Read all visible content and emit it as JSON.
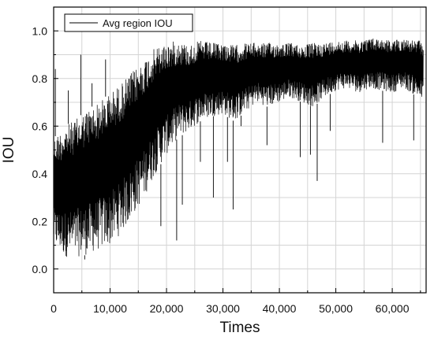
{
  "chart_data": {
    "type": "line",
    "title": "",
    "xlabel": "Times",
    "ylabel": "IOU",
    "xlim": [
      0,
      66000
    ],
    "ylim": [
      -0.1,
      1.1
    ],
    "x_ticks": [
      0,
      10000,
      20000,
      30000,
      40000,
      50000,
      60000
    ],
    "x_tick_labels": [
      "0",
      "10,000",
      "20,000",
      "30,000",
      "40,000",
      "50,000",
      "60,000"
    ],
    "y_ticks": [
      0.0,
      0.2,
      0.4,
      0.6,
      0.8,
      1.0
    ],
    "y_tick_labels": [
      "0.0",
      "0.2",
      "0.4",
      "0.6",
      "0.8",
      "1.0"
    ],
    "grid": true,
    "legend_position": "top-left",
    "series": [
      {
        "name": "Avg region IOU",
        "color": "#000000",
        "envelope": {
          "x": [
            0,
            2000,
            4000,
            6000,
            8000,
            10000,
            12000,
            14000,
            16000,
            18000,
            20000,
            22000,
            24000,
            26000,
            28000,
            30000,
            32000,
            34000,
            36000,
            38000,
            40000,
            42000,
            44000,
            46000,
            48000,
            50000,
            52000,
            54000,
            56000,
            58000,
            60000,
            62000,
            64000,
            65500
          ],
          "upper": [
            0.55,
            0.6,
            0.63,
            0.67,
            0.7,
            0.74,
            0.78,
            0.83,
            0.88,
            0.93,
            0.95,
            0.96,
            0.94,
            0.96,
            0.95,
            0.95,
            0.94,
            0.95,
            0.95,
            0.95,
            0.95,
            0.95,
            0.94,
            0.95,
            0.95,
            0.96,
            0.96,
            0.96,
            0.97,
            0.97,
            0.96,
            0.97,
            0.96,
            0.96
          ],
          "lower": [
            0.1,
            0.05,
            0.05,
            0.06,
            0.08,
            0.1,
            0.15,
            0.22,
            0.3,
            0.4,
            0.48,
            0.55,
            0.58,
            0.62,
            0.64,
            0.65,
            0.62,
            0.66,
            0.7,
            0.68,
            0.7,
            0.72,
            0.7,
            0.68,
            0.72,
            0.75,
            0.76,
            0.74,
            0.76,
            0.75,
            0.74,
            0.76,
            0.73,
            0.7
          ]
        },
        "spikes": [
          {
            "x": 300,
            "y": 0.84
          },
          {
            "x": 2600,
            "y": 0.75
          },
          {
            "x": 4800,
            "y": 0.9
          },
          {
            "x": 6800,
            "y": 0.78
          },
          {
            "x": 9200,
            "y": 0.88
          },
          {
            "x": 5500,
            "y": 0.04
          },
          {
            "x": 19000,
            "y": 0.18
          },
          {
            "x": 21800,
            "y": 0.12
          },
          {
            "x": 22800,
            "y": 0.27
          },
          {
            "x": 26000,
            "y": 0.45
          },
          {
            "x": 28300,
            "y": 0.3
          },
          {
            "x": 30800,
            "y": 0.45
          },
          {
            "x": 31800,
            "y": 0.25
          },
          {
            "x": 33200,
            "y": 0.6
          },
          {
            "x": 37800,
            "y": 0.52
          },
          {
            "x": 43700,
            "y": 0.47
          },
          {
            "x": 45500,
            "y": 0.48
          },
          {
            "x": 46700,
            "y": 0.37
          },
          {
            "x": 49000,
            "y": 0.58
          },
          {
            "x": 58300,
            "y": 0.53
          },
          {
            "x": 63800,
            "y": 0.54
          }
        ]
      }
    ]
  }
}
